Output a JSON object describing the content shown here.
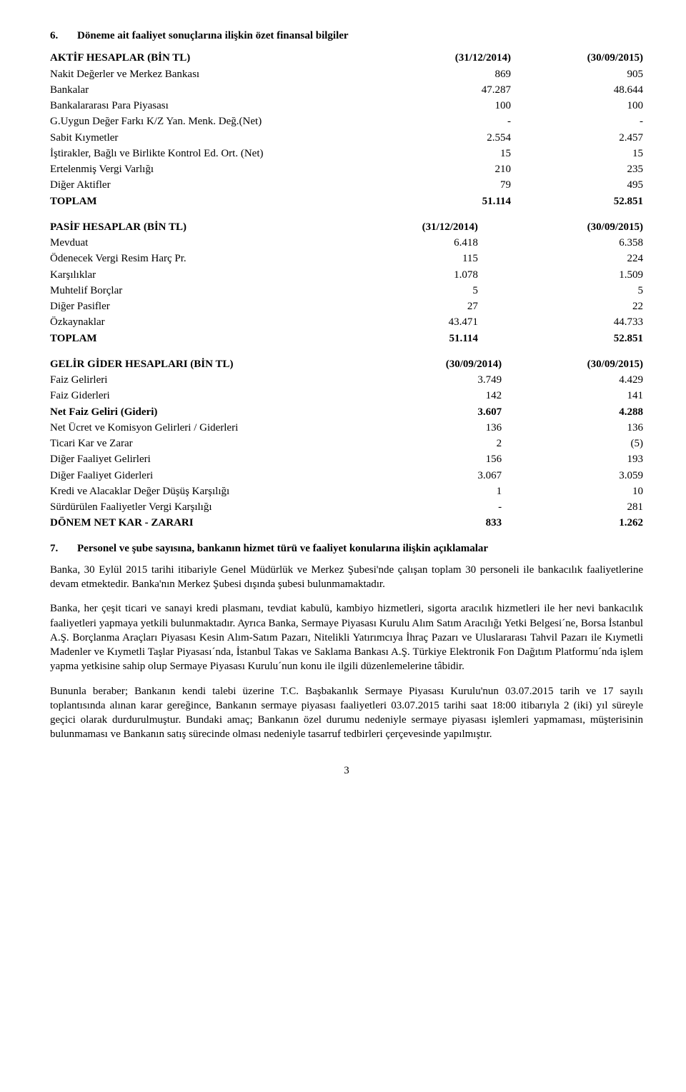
{
  "section6": {
    "num": "6.",
    "title": "Döneme ait faaliyet sonuçlarına ilişkin özet finansal bilgiler",
    "tables": {
      "aktif": {
        "header": {
          "label": "AKTİF HESAPLAR   (BİN TL)",
          "c1": "(31/12/2014)",
          "c2": "(30/09/2015)"
        },
        "rows": [
          {
            "label": "Nakit Değerler ve Merkez Bankası",
            "c1": "869",
            "c2": "905"
          },
          {
            "label": "Bankalar",
            "c1": "47.287",
            "c2": "48.644"
          },
          {
            "label": "Bankalararası Para Piyasası",
            "c1": "100",
            "c2": "100"
          },
          {
            "label": "G.Uygun Değer Farkı K/Z Yan. Menk. Değ.(Net)",
            "c1": "-",
            "c2": "-"
          },
          {
            "label": "Sabit Kıymetler",
            "c1": "2.554",
            "c2": "2.457"
          },
          {
            "label": "İştirakler, Bağlı  ve Birlikte Kontrol Ed. Ort. (Net)",
            "c1": "15",
            "c2": "15"
          },
          {
            "label": "Ertelenmiş Vergi Varlığı",
            "c1": "210",
            "c2": "235"
          },
          {
            "label": "Diğer Aktifler",
            "c1": "79",
            "c2": "495"
          }
        ],
        "total": {
          "label": "TOPLAM",
          "c1": "51.114",
          "c2": "52.851"
        }
      },
      "pasif": {
        "header": {
          "label": "PASİF  HESAPLAR   (BİN TL)",
          "c1": "(31/12/2014)",
          "c2": "(30/09/2015)"
        },
        "rows": [
          {
            "label": "Mevduat",
            "c1": "6.418",
            "c2": "6.358"
          },
          {
            "label": "Ödenecek Vergi Resim Harç Pr.",
            "c1": "115",
            "c2": "224"
          },
          {
            "label": "Karşılıklar",
            "c1": "1.078",
            "c2": "1.509"
          },
          {
            "label": "Muhtelif Borçlar",
            "c1": "5",
            "c2": "5"
          },
          {
            "label": "Diğer Pasifler",
            "c1": "27",
            "c2": "22"
          },
          {
            "label": "Özkaynaklar",
            "c1": "43.471",
            "c2": "44.733"
          }
        ],
        "total": {
          "label": "TOPLAM",
          "c1": "51.114",
          "c2": "52.851"
        }
      },
      "gelir": {
        "header": {
          "label": "GELİR GİDER HESAPLARI (BİN TL)",
          "c1": "(30/09/2014)",
          "c2": "(30/09/2015)"
        },
        "rows": [
          {
            "label": "Faiz Gelirleri",
            "c1": "3.749",
            "c2": "4.429",
            "bold": false
          },
          {
            "label": "Faiz Giderleri",
            "c1": "142",
            "c2": "141",
            "bold": false
          },
          {
            "label": "Net Faiz Geliri (Gideri)",
            "c1": "3.607",
            "c2": "4.288",
            "bold": true
          },
          {
            "label": "Net Ücret ve Komisyon Gelirleri / Giderleri",
            "c1": "136",
            "c2": "136",
            "bold": false
          },
          {
            "label": "Ticari Kar ve Zarar",
            "c1": "2",
            "c2": "(5)",
            "bold": false
          },
          {
            "label": "Diğer Faaliyet Gelirleri",
            "c1": "156",
            "c2": "193",
            "bold": false
          },
          {
            "label": "Diğer Faaliyet Giderleri",
            "c1": "3.067",
            "c2": "3.059",
            "bold": false
          },
          {
            "label": "Kredi ve Alacaklar Değer Düşüş Karşılığı",
            "c1": "1",
            "c2": "10",
            "bold": false
          },
          {
            "label": "Sürdürülen Faaliyetler Vergi Karşılığı",
            "c1": "-",
            "c2": "281",
            "bold": false
          }
        ],
        "total": {
          "label": "DÖNEM NET KAR - ZARARI",
          "c1": "833",
          "c2": "1.262"
        }
      }
    }
  },
  "section7": {
    "num": "7.",
    "title": "Personel ve şube sayısına, bankanın hizmet türü ve faaliyet konularına ilişkin açıklamalar",
    "paras": [
      "Banka, 30 Eylül 2015 tarihi itibariyle Genel Müdürlük ve Merkez Şubesi'nde çalışan toplam 30 personeli ile bankacılık faaliyetlerine devam etmektedir. Banka'nın Merkez Şubesi dışında şubesi bulunmamaktadır.",
      "Banka, her çeşit ticari ve sanayi kredi plasmanı, tevdiat kabulü, kambiyo hizmetleri, sigorta aracılık hizmetleri ile her nevi bankacılık faaliyetleri yapmaya yetkili bulunmaktadır. Ayrıca Banka, Sermaye Piyasası Kurulu Alım Satım Aracılığı Yetki Belgesi´ne, Borsa İstanbul A.Ş. Borçlanma Araçları Piyasası Kesin Alım-Satım Pazarı, Nitelikli Yatırımcıya İhraç Pazarı ve Uluslararası Tahvil Pazarı ile Kıymetli Madenler ve Kıymetli Taşlar Piyasası´nda, İstanbul Takas ve Saklama Bankası A.Ş. Türkiye Elektronik Fon Dağıtım Platformu´nda işlem yapma yetkisine sahip olup Sermaye Piyasası Kurulu´nun konu ile ilgili düzenlemelerine tâbidir.",
      "Bununla beraber; Bankanın kendi talebi üzerine T.C. Başbakanlık Sermaye Piyasası Kurulu'nun 03.07.2015 tarih ve 17 sayılı toplantısında alınan karar gereğince, Bankanın sermaye piyasası faaliyetleri 03.07.2015 tarihi saat 18:00 itibarıyla 2 (iki) yıl süreyle geçici olarak durdurulmuştur. Bundaki amaç; Bankanın özel durumu nedeniyle sermaye piyasası işlemleri yapmaması, müşterisinin bulunmaması ve Bankanın satış sürecinde olması nedeniyle tasarruf tedbirleri çerçevesinde yapılmıştır."
    ]
  },
  "pageNumber": "3"
}
